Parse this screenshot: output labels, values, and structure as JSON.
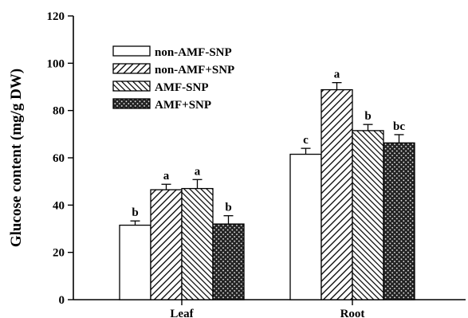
{
  "chart_data": {
    "type": "bar",
    "ylabel": "Glucose content (mg/g DW)",
    "xlabel": "",
    "ylim": [
      0,
      120
    ],
    "yticks": [
      0,
      20,
      40,
      60,
      80,
      100,
      120
    ],
    "categories": [
      "Leaf",
      "Root"
    ],
    "legend_position": "top-left",
    "series": [
      {
        "name": "non-AMF-SNP",
        "pattern": "white",
        "values": [
          31.5,
          61.5
        ],
        "errors": [
          1.8,
          2.5
        ],
        "letters": [
          "b",
          "c"
        ]
      },
      {
        "name": "non-AMF+SNP",
        "pattern": "diag-right",
        "values": [
          46.5,
          88.8
        ],
        "errors": [
          2.3,
          3.0
        ],
        "letters": [
          "a",
          "a"
        ]
      },
      {
        "name": "AMF-SNP",
        "pattern": "diag-left-dense",
        "values": [
          47.0,
          71.5
        ],
        "errors": [
          3.8,
          2.6
        ],
        "letters": [
          "a",
          "b"
        ]
      },
      {
        "name": "AMF+SNP",
        "pattern": "crosshatch",
        "values": [
          32.0,
          66.3
        ],
        "errors": [
          3.5,
          3.5
        ],
        "letters": [
          "b",
          "bc"
        ]
      }
    ]
  }
}
